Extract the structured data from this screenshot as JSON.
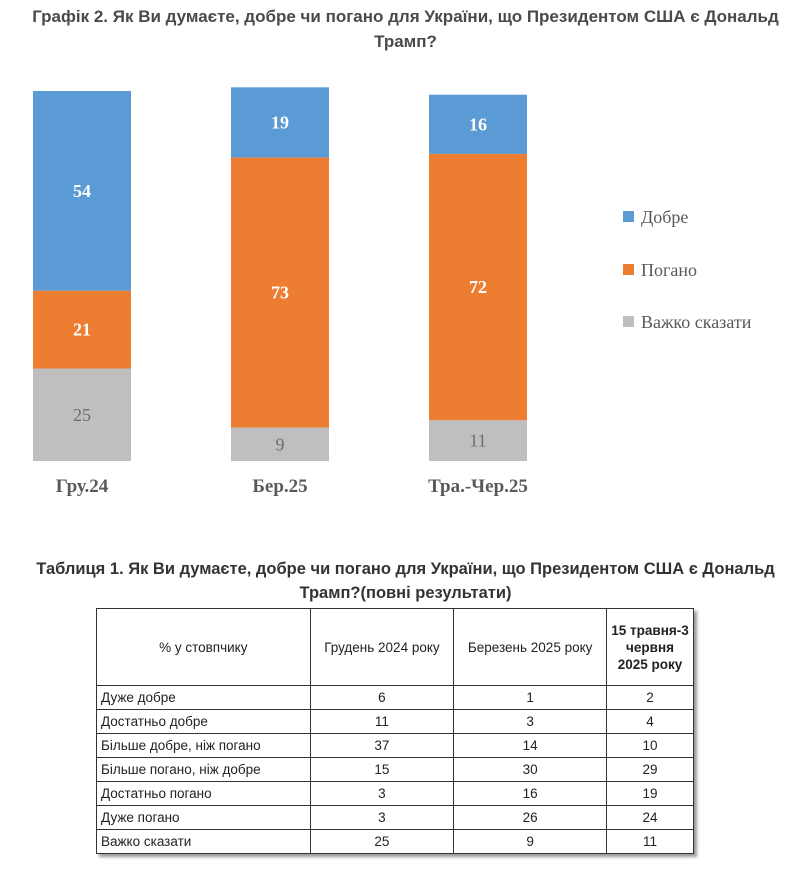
{
  "chart_title": "Графік 2. Як Ви думаєте, добре чи погано для України, що Президентом США є Дональд Трамп?",
  "chart_data": {
    "type": "bar",
    "stacked": true,
    "categories": [
      "Гру.24",
      "Бер.25",
      "Тра.-Чер.25"
    ],
    "series": [
      {
        "name": "Добре",
        "values": [
          54,
          19,
          16
        ],
        "color": "#5b9bd5",
        "label_color": "#ffffff"
      },
      {
        "name": "Погано",
        "values": [
          21,
          73,
          72
        ],
        "color": "#ed7d31",
        "label_color": "#ffffff"
      },
      {
        "name": "Важко сказати",
        "values": [
          25,
          9,
          11
        ],
        "color": "#bfbfbf",
        "label_color": "#6d6d6d"
      }
    ],
    "stack_order": "top-to-bottom",
    "ylim": [
      0,
      100
    ],
    "grid": false,
    "legend_position": "right"
  },
  "table": {
    "title": "Таблиця 1. Як Ви думаєте, добре чи погано для України, що Президентом США є Дональд Трамп?(повні результати)",
    "headers": [
      "% у стовпчику",
      "Грудень 2024 року",
      "Березень 2025 року",
      "15 травня-3 червня 2025 року"
    ],
    "rows": [
      [
        "Дуже добре",
        "6",
        "1",
        "2"
      ],
      [
        "Достатньо добре",
        "11",
        "3",
        "4"
      ],
      [
        "Більше добре, ніж погано",
        "37",
        "14",
        "10"
      ],
      [
        "Більше погано, ніж добре",
        "15",
        "30",
        "29"
      ],
      [
        "Достатньо погано",
        "3",
        "16",
        "19"
      ],
      [
        "Дуже погано",
        "3",
        "26",
        "24"
      ],
      [
        "Важко сказати",
        "25",
        "9",
        "11"
      ]
    ]
  }
}
